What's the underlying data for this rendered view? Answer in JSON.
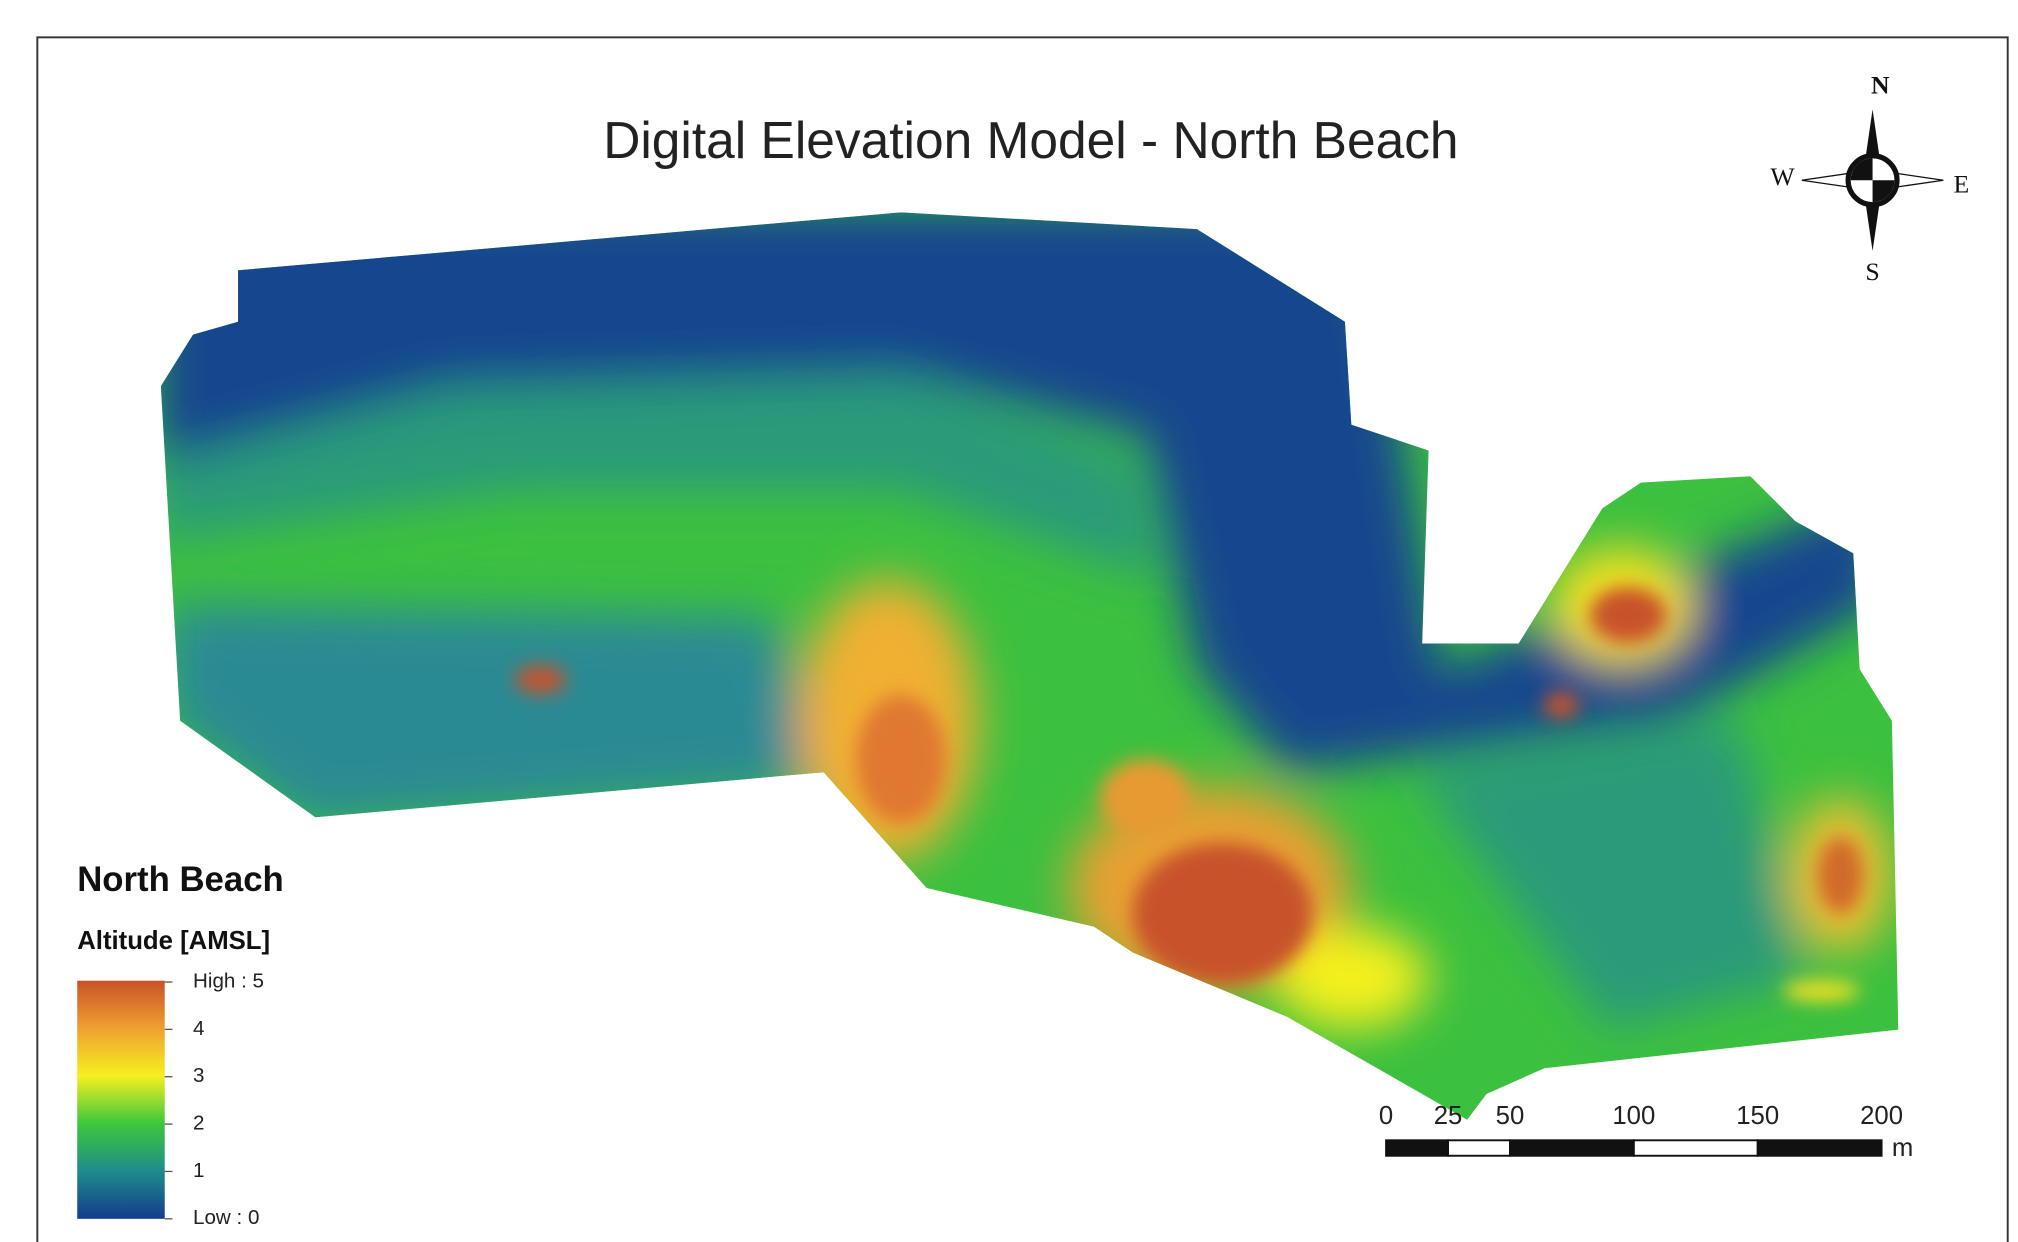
{
  "title": "Digital Elevation Model - North Beach",
  "compass": {
    "north": "N",
    "south": "S",
    "east": "E",
    "west": "W"
  },
  "legend": {
    "title": "North Beach",
    "subtitle": "Altitude [AMSL]",
    "ticks": [
      {
        "value": 5,
        "label": "High : 5"
      },
      4,
      3,
      2,
      1,
      {
        "value": 0,
        "label": "Low : 0"
      }
    ]
  },
  "scale_bar": {
    "ticks": [
      0,
      25,
      50,
      100,
      150,
      200
    ],
    "unit": "m"
  }
}
